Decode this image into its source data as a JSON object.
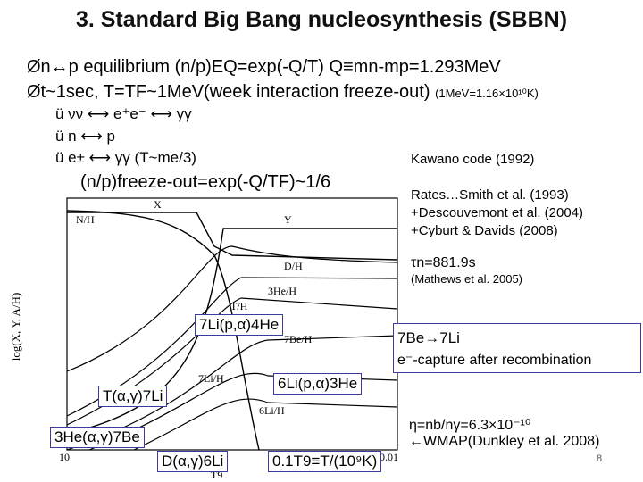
{
  "title": "3. Standard Big Bang nucleosynthesis (SBBN)",
  "bullets": {
    "b1": "Øn↔p equilibrium  (n/p)EQ=exp(-Q/T)   Q≡mn-mp=1.293MeV",
    "b2_main": "Øt~1sec, T=TF~1MeV(week interaction freeze-out)",
    "b2_small": "(1MeV=1.16×10¹⁰K)",
    "s1": "ü νν  ⟷  e⁺e⁻  ⟷  γγ",
    "s2": "ü n ⟷ p",
    "s3": "ü e±  ⟷  γγ (T~me/3)",
    "freeze": "(n/p)freeze-out=exp(-Q/TF)~1/6"
  },
  "right_notes": {
    "kawano": "Kawano code (1992)",
    "rates1": "Rates…Smith et al. (1993)",
    "rates2": "+Descouvemont et al. (2004)",
    "rates3": "+Cyburt & Davids (2008)",
    "tau": "τn=881.9s",
    "mathews": "(Mathews et al. 2005)",
    "be7_1": "7Be→7Li",
    "be7_2": "e⁻-capture after  recombination",
    "eta1": "η=nb/nγ=6.3×10⁻¹⁰",
    "eta2": "←WMAP(Dunkley et al. 2008)",
    "page": "8"
  },
  "plot": {
    "ylabel": "log(X, Y, A/H)",
    "xlabel": "T9",
    "curve_labels": [
      "X",
      "N/H",
      "Y",
      "D/H",
      "3He/H",
      "T/H",
      "7Be/H",
      "7Li/H",
      "6Li/H"
    ],
    "tick_labels": [
      "10",
      "0.1",
      "0.01"
    ],
    "reaction_boxes": [
      "7Li(p,α)4He",
      "6Li(p,α)3He",
      "T(α,γ)7Li",
      "3He(α,γ)7Be",
      "D(α,γ)6Li",
      "0.1T9≡T/(10⁹K)"
    ]
  }
}
